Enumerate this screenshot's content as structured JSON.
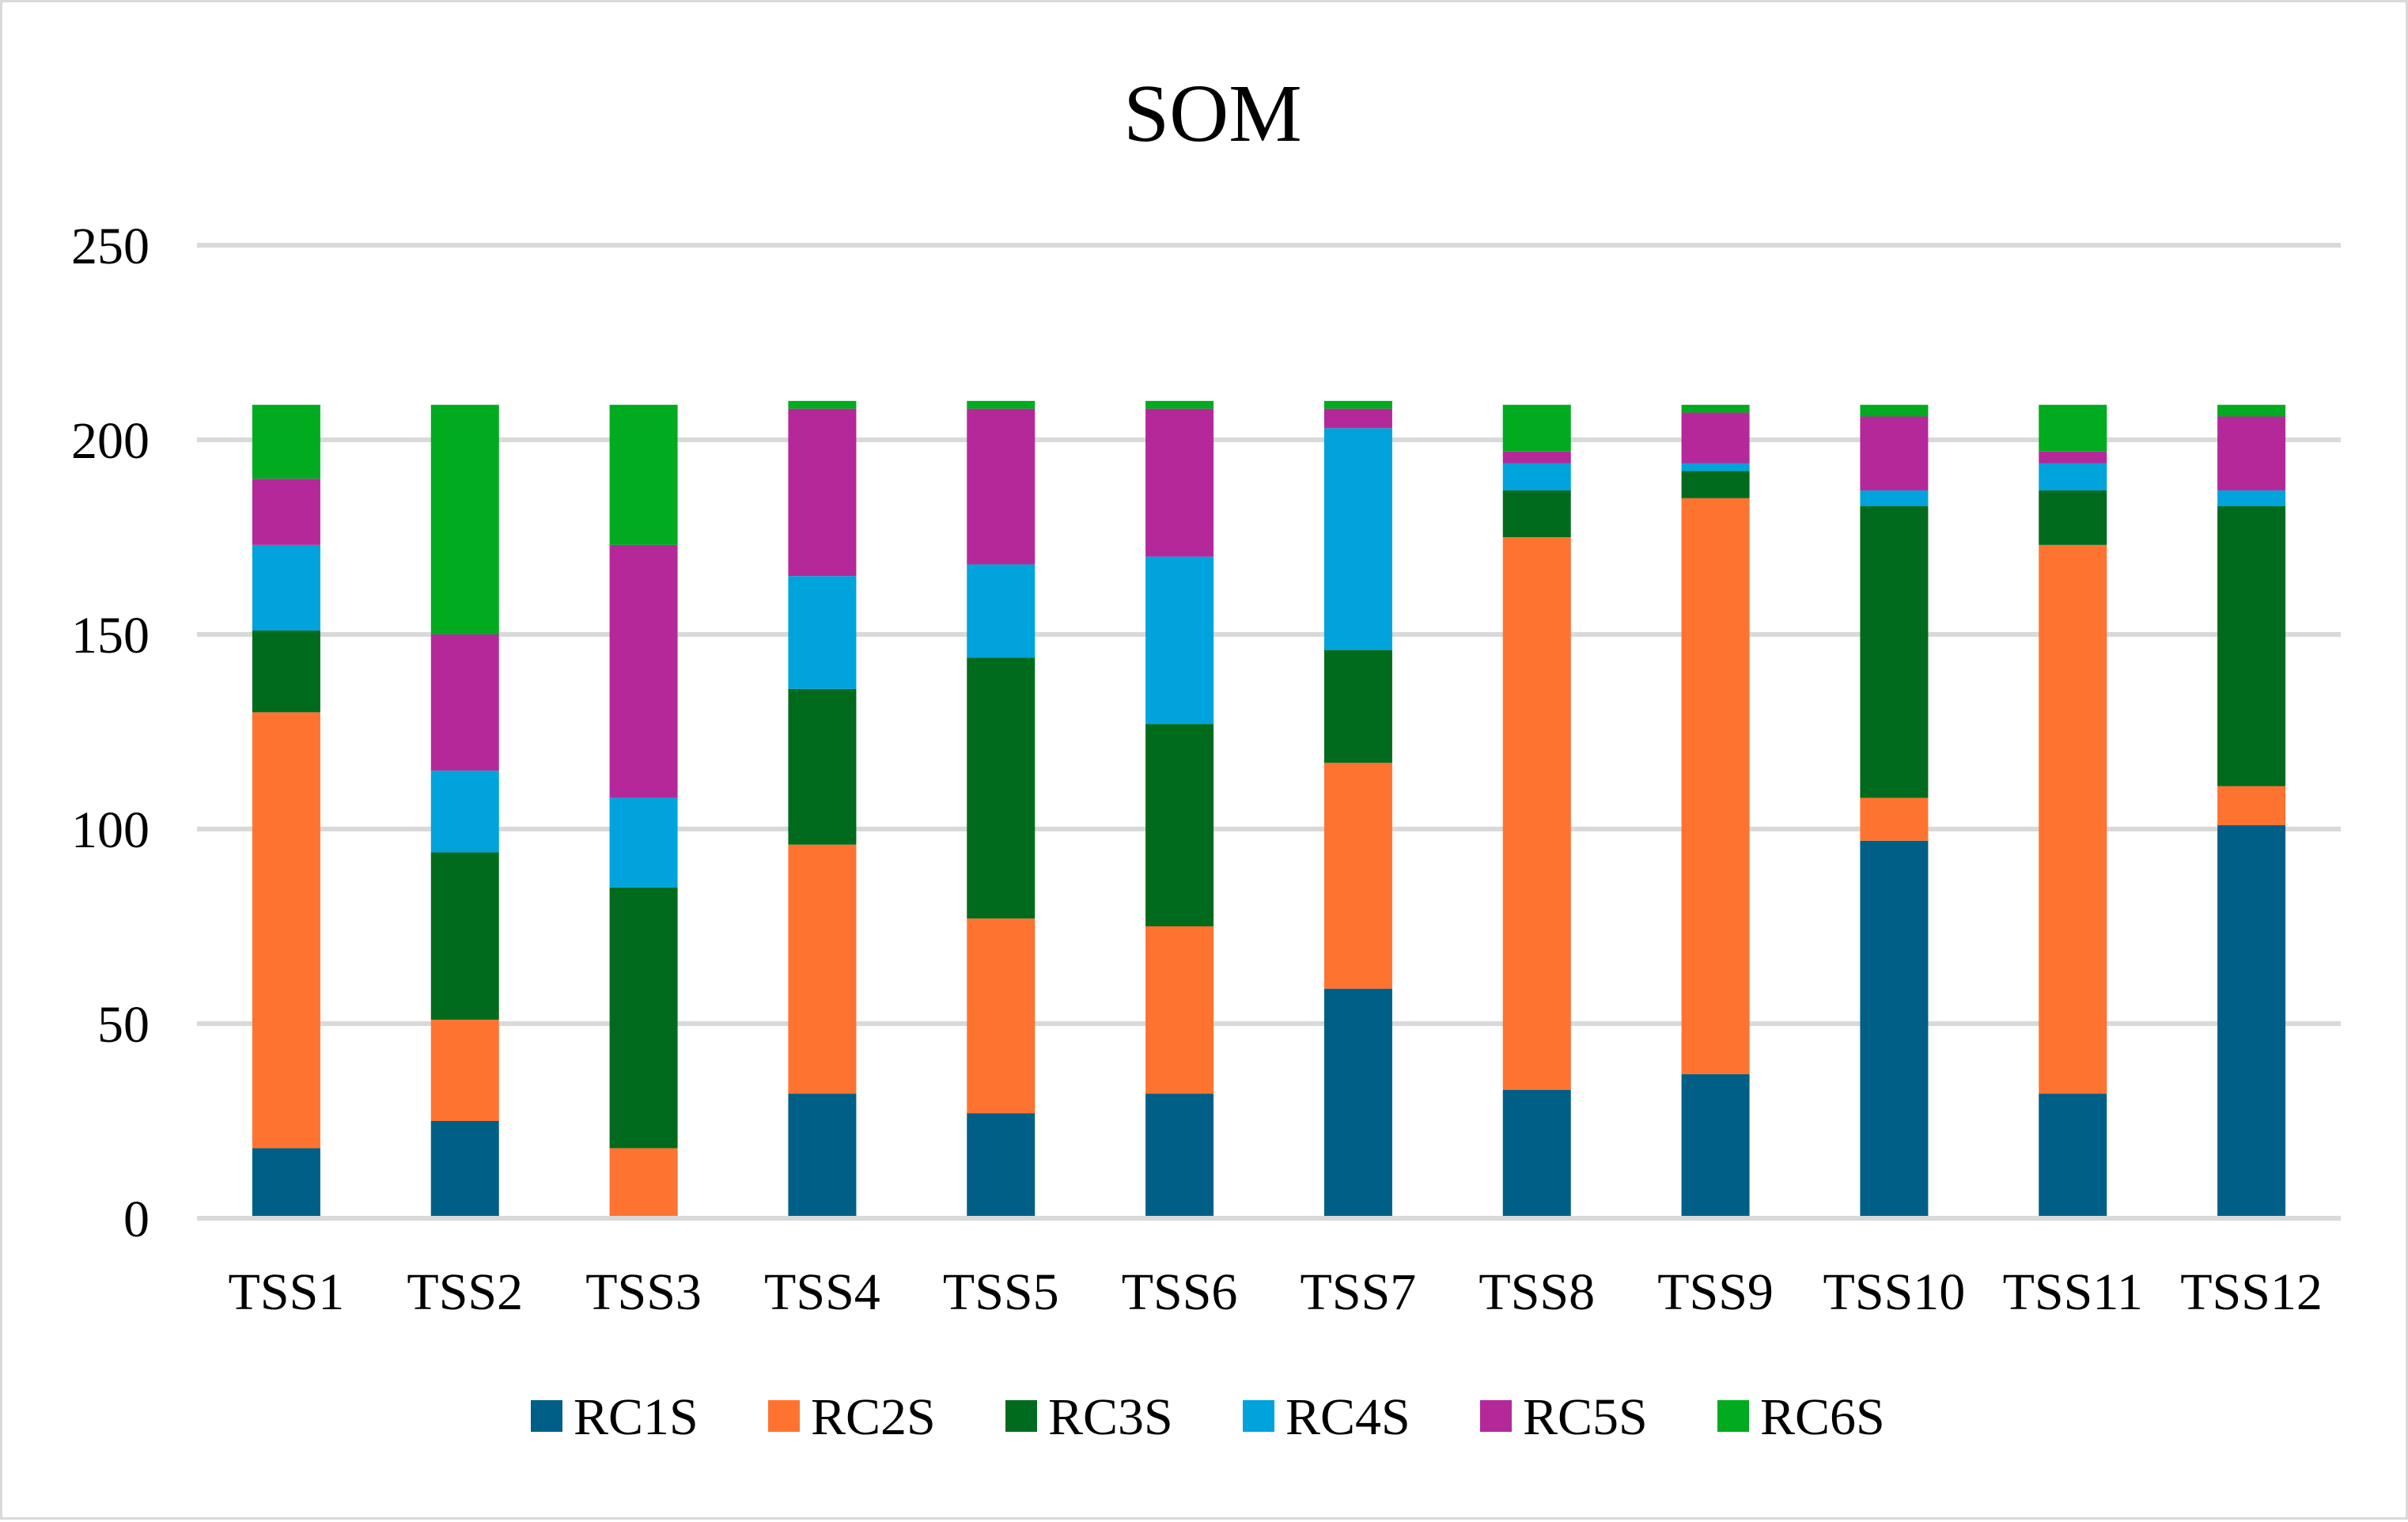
{
  "chart_data": {
    "type": "bar",
    "stacked": true,
    "title": "SOM",
    "xlabel": "",
    "ylabel": "",
    "ylim": [
      0,
      250
    ],
    "yticks": [
      0,
      50,
      100,
      150,
      200,
      250
    ],
    "ytick_labels": [
      "0",
      "50",
      "100",
      "150",
      "200",
      "250"
    ],
    "grid": true,
    "legend_position": "bottom",
    "categories": [
      "TSS1",
      "TSS2",
      "TSS3",
      "TSS4",
      "TSS5",
      "TSS6",
      "TSS7",
      "TSS8",
      "TSS9",
      "TSS10",
      "TSS11",
      "TSS12"
    ],
    "series": [
      {
        "name": "RC1S",
        "color": "#005f87",
        "values": [
          18,
          25,
          0,
          32,
          27,
          32,
          59,
          33,
          37,
          97,
          32,
          101
        ]
      },
      {
        "name": "RC2S",
        "color": "#ff7330",
        "values": [
          112,
          26,
          18,
          64,
          50,
          43,
          58,
          142,
          148,
          11,
          141,
          10
        ]
      },
      {
        "name": "RC3S",
        "color": "#006b1d",
        "values": [
          21,
          43,
          67,
          40,
          67,
          52,
          29,
          12,
          7,
          75,
          14,
          72
        ]
      },
      {
        "name": "RC4S",
        "color": "#00a3db",
        "values": [
          22,
          21,
          23,
          29,
          24,
          43,
          57,
          7,
          2,
          4,
          7,
          4
        ]
      },
      {
        "name": "RC5S",
        "color": "#b5289a",
        "values": [
          17,
          35,
          65,
          43,
          40,
          38,
          5,
          3,
          13,
          19,
          3,
          19
        ]
      },
      {
        "name": "RC6S",
        "color": "#00ab1f",
        "values": [
          19,
          59,
          36,
          2,
          2,
          2,
          2,
          12,
          2,
          3,
          12,
          3
        ]
      }
    ]
  }
}
